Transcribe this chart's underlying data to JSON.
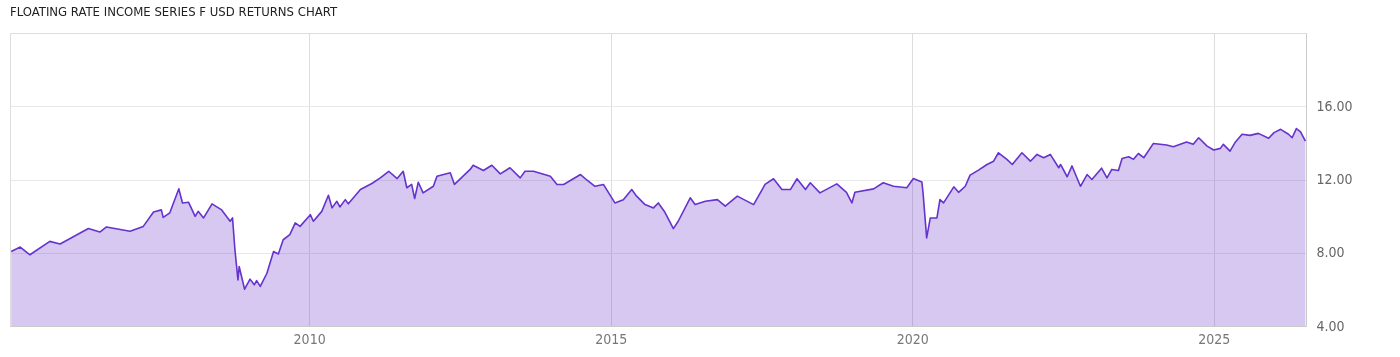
{
  "chart_data": {
    "type": "area",
    "title": "FLOATING RATE INCOME SERIES F USD RETURNS CHART",
    "xlim": [
      2005.04,
      2026.53
    ],
    "xticks": [
      2010,
      2015,
      2020,
      2025
    ],
    "ylim": [
      4,
      20
    ],
    "yticks": [
      {
        "value": 4,
        "label": "4.00"
      },
      {
        "value": 8,
        "label": "8.00"
      },
      {
        "value": 12,
        "label": "12.00"
      },
      {
        "value": 16,
        "label": "16.00"
      }
    ],
    "grid": true,
    "x": [
      2005.06,
      2005.21,
      2005.37,
      2005.7,
      2005.87,
      2006.34,
      2006.53,
      2006.64,
      2007.03,
      2007.25,
      2007.42,
      2007.55,
      2007.58,
      2007.69,
      2007.84,
      2007.9,
      2008.0,
      2008.11,
      2008.16,
      2008.25,
      2008.39,
      2008.55,
      2008.69,
      2008.73,
      2008.77,
      2008.82,
      2008.84,
      2008.93,
      2009.02,
      2009.09,
      2009.13,
      2009.19,
      2009.3,
      2009.41,
      2009.49,
      2009.57,
      2009.68,
      2009.77,
      2009.85,
      2010.02,
      2010.07,
      2010.21,
      2010.32,
      2010.38,
      2010.46,
      2010.51,
      2010.6,
      2010.65,
      2010.85,
      2011.04,
      2011.18,
      2011.32,
      2011.46,
      2011.56,
      2011.62,
      2011.7,
      2011.75,
      2011.81,
      2011.89,
      2012.06,
      2012.12,
      2012.34,
      2012.41,
      2012.67,
      2012.72,
      2012.89,
      2013.03,
      2013.17,
      2013.33,
      2013.5,
      2013.58,
      2013.72,
      2014.0,
      2014.11,
      2014.22,
      2014.5,
      2014.61,
      2014.74,
      2014.88,
      2015.07,
      2015.21,
      2015.35,
      2015.43,
      2015.57,
      2015.71,
      2015.79,
      2015.9,
      2016.04,
      2016.12,
      2016.32,
      2016.4,
      2016.57,
      2016.77,
      2016.9,
      2017.1,
      2017.37,
      2017.56,
      2017.7,
      2017.84,
      2017.98,
      2018.09,
      2018.23,
      2018.31,
      2018.47,
      2018.75,
      2018.91,
      2019.0,
      2019.05,
      2019.36,
      2019.52,
      2019.69,
      2019.91,
      2020.02,
      2020.16,
      2020.18,
      2020.24,
      2020.3,
      2020.41,
      2020.46,
      2020.52,
      2020.69,
      2020.77,
      2020.88,
      2020.96,
      2021.1,
      2021.24,
      2021.35,
      2021.43,
      2021.57,
      2021.66,
      2021.82,
      2021.96,
      2022.07,
      2022.18,
      2022.29,
      2022.43,
      2022.46,
      2022.57,
      2022.65,
      2022.79,
      2022.9,
      2022.98,
      2023.14,
      2023.23,
      2023.31,
      2023.42,
      2023.48,
      2023.59,
      2023.67,
      2023.75,
      2023.84,
      2024.0,
      2024.22,
      2024.33,
      2024.55,
      2024.66,
      2024.75,
      2024.89,
      2025.0,
      2025.11,
      2025.16,
      2025.27,
      2025.36,
      2025.47,
      2025.6,
      2025.74,
      2025.91,
      2026.0,
      2026.11,
      2026.24,
      2026.3,
      2026.37,
      2026.44,
      2026.52
    ],
    "series": [
      {
        "color": "#6633cc",
        "values": [
          8.07,
          8.31,
          7.89,
          8.62,
          8.48,
          9.32,
          9.13,
          9.41,
          9.17,
          9.44,
          10.23,
          10.34,
          9.93,
          10.18,
          11.49,
          10.72,
          10.76,
          9.99,
          10.26,
          9.9,
          10.67,
          10.34,
          9.72,
          9.9,
          8.16,
          6.52,
          7.25,
          6.01,
          6.56,
          6.25,
          6.48,
          6.16,
          6.88,
          8.07,
          7.93,
          8.71,
          8.99,
          9.63,
          9.44,
          10.08,
          9.72,
          10.26,
          11.14,
          10.45,
          10.81,
          10.5,
          10.9,
          10.67,
          11.45,
          11.78,
          12.09,
          12.45,
          12.05,
          12.45,
          11.55,
          11.73,
          10.96,
          11.85,
          11.27,
          11.63,
          12.18,
          12.37,
          11.73,
          12.55,
          12.78,
          12.49,
          12.78,
          12.31,
          12.64,
          12.09,
          12.45,
          12.45,
          12.18,
          11.73,
          11.73,
          12.27,
          11.96,
          11.63,
          11.73,
          10.72,
          10.9,
          11.45,
          11.09,
          10.63,
          10.45,
          10.72,
          10.21,
          9.32,
          9.72,
          11.0,
          10.63,
          10.81,
          10.9,
          10.54,
          11.09,
          10.63,
          11.73,
          12.04,
          11.45,
          11.45,
          12.04,
          11.45,
          11.82,
          11.27,
          11.76,
          11.3,
          10.72,
          11.3,
          11.49,
          11.82,
          11.63,
          11.55,
          12.05,
          11.87,
          11.27,
          8.81,
          9.9,
          9.9,
          10.9,
          10.72,
          11.6,
          11.3,
          11.63,
          12.24,
          12.51,
          12.82,
          13.0,
          13.46,
          13.1,
          12.82,
          13.46,
          13.0,
          13.37,
          13.19,
          13.37,
          12.64,
          12.82,
          12.15,
          12.74,
          11.63,
          12.27,
          12.0,
          12.62,
          12.09,
          12.55,
          12.49,
          13.15,
          13.24,
          13.1,
          13.42,
          13.19,
          13.97,
          13.88,
          13.79,
          14.05,
          13.92,
          14.28,
          13.82,
          13.61,
          13.7,
          13.92,
          13.55,
          14.05,
          14.47,
          14.41,
          14.52,
          14.25,
          14.56,
          14.74,
          14.47,
          14.28,
          14.78,
          14.6,
          14.1
        ]
      }
    ]
  }
}
